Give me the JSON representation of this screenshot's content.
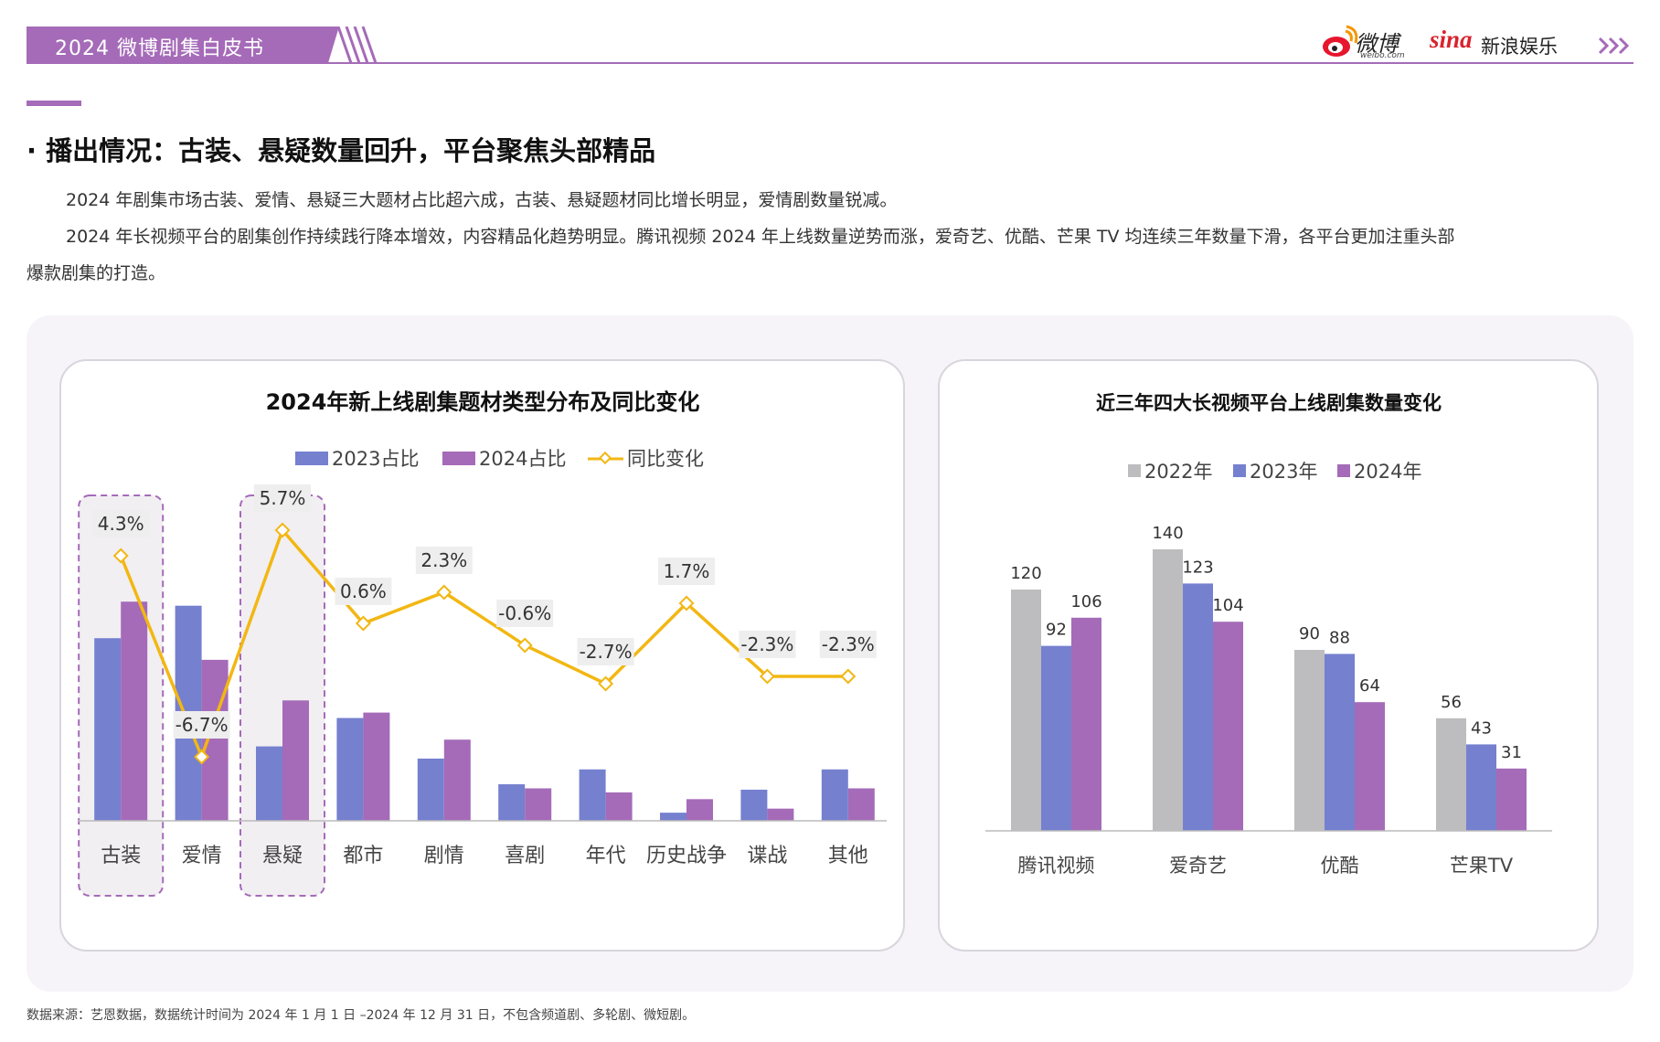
{
  "header": {
    "report_title": "2024 微博剧集白皮书",
    "weibo_logo_text": "微博",
    "weibo_logo_sub": "weibo.com",
    "sina_logo_text": "sina",
    "sina_logo_cn": "新浪娱乐",
    "brand_color": "#a56bb8"
  },
  "section": {
    "heading": "· 播出情况：古装、悬疑数量回升，平台聚焦头部精品",
    "para1": "2024 年剧集市场古装、爱情、悬疑三大题材占比超六成，古装、悬疑题材同比增长明显，爱情剧数量锐减。",
    "para2": "2024 年长视频平台的剧集创作持续践行降本增效，内容精品化趋势明显。腾讯视频 2024 年上线数量逆势而涨，爱奇艺、优酷、芒果 TV 均连续三年数量下滑，各平台更加注重头部",
    "para3": "爆款剧集的打造。"
  },
  "chart_data": [
    {
      "type": "bar",
      "title": "2024年新上线剧集题材类型分布及同比变化",
      "categories": [
        "古装",
        "爱情",
        "悬疑",
        "都市",
        "剧情",
        "喜剧",
        "年代",
        "历史战争",
        "谍战",
        "其他"
      ],
      "series": [
        {
          "name": "2023占比",
          "type": "bar",
          "color": "#7580cf",
          "values": [
            13.5,
            15.9,
            5.5,
            7.6,
            4.6,
            2.7,
            3.8,
            0.6,
            2.3,
            3.8
          ]
        },
        {
          "name": "2024占比",
          "type": "bar",
          "color": "#a56bb8",
          "values": [
            16.2,
            11.9,
            8.9,
            8.0,
            6.0,
            2.4,
            2.1,
            1.6,
            0.9,
            2.4
          ]
        },
        {
          "name": "同比变化",
          "type": "line",
          "color": "#f2b713",
          "values": [
            4.3,
            -6.7,
            5.7,
            0.6,
            2.3,
            -0.6,
            -2.7,
            1.7,
            -2.3,
            -2.3
          ],
          "labels": [
            "4.3%",
            "-6.7%",
            "5.7%",
            "0.6%",
            "2.3%",
            "-0.6%",
            "-2.7%",
            "1.7%",
            "-2.3%",
            "-2.3%"
          ]
        }
      ],
      "highlighted_categories": [
        "古装",
        "悬疑"
      ],
      "legend": "top"
    },
    {
      "type": "bar",
      "title": "近三年四大长视频平台上线剧集数量变化",
      "categories": [
        "腾讯视频",
        "爱奇艺",
        "优酷",
        "芒果TV"
      ],
      "series": [
        {
          "name": "2022年",
          "color": "#bdbcbe",
          "values": [
            120,
            140,
            90,
            56
          ]
        },
        {
          "name": "2023年",
          "color": "#7580cf",
          "values": [
            92,
            123,
            88,
            43
          ]
        },
        {
          "name": "2024年",
          "color": "#a56bb8",
          "values": [
            106,
            104,
            64,
            31
          ]
        }
      ],
      "legend": "top"
    }
  ],
  "footer": {
    "source_note": "数据来源：艺恩数据，数据统计时间为 2024 年 1 月 1 日 –2024 年 12 月 31 日，不包含频道剧、多轮剧、微短剧。"
  }
}
